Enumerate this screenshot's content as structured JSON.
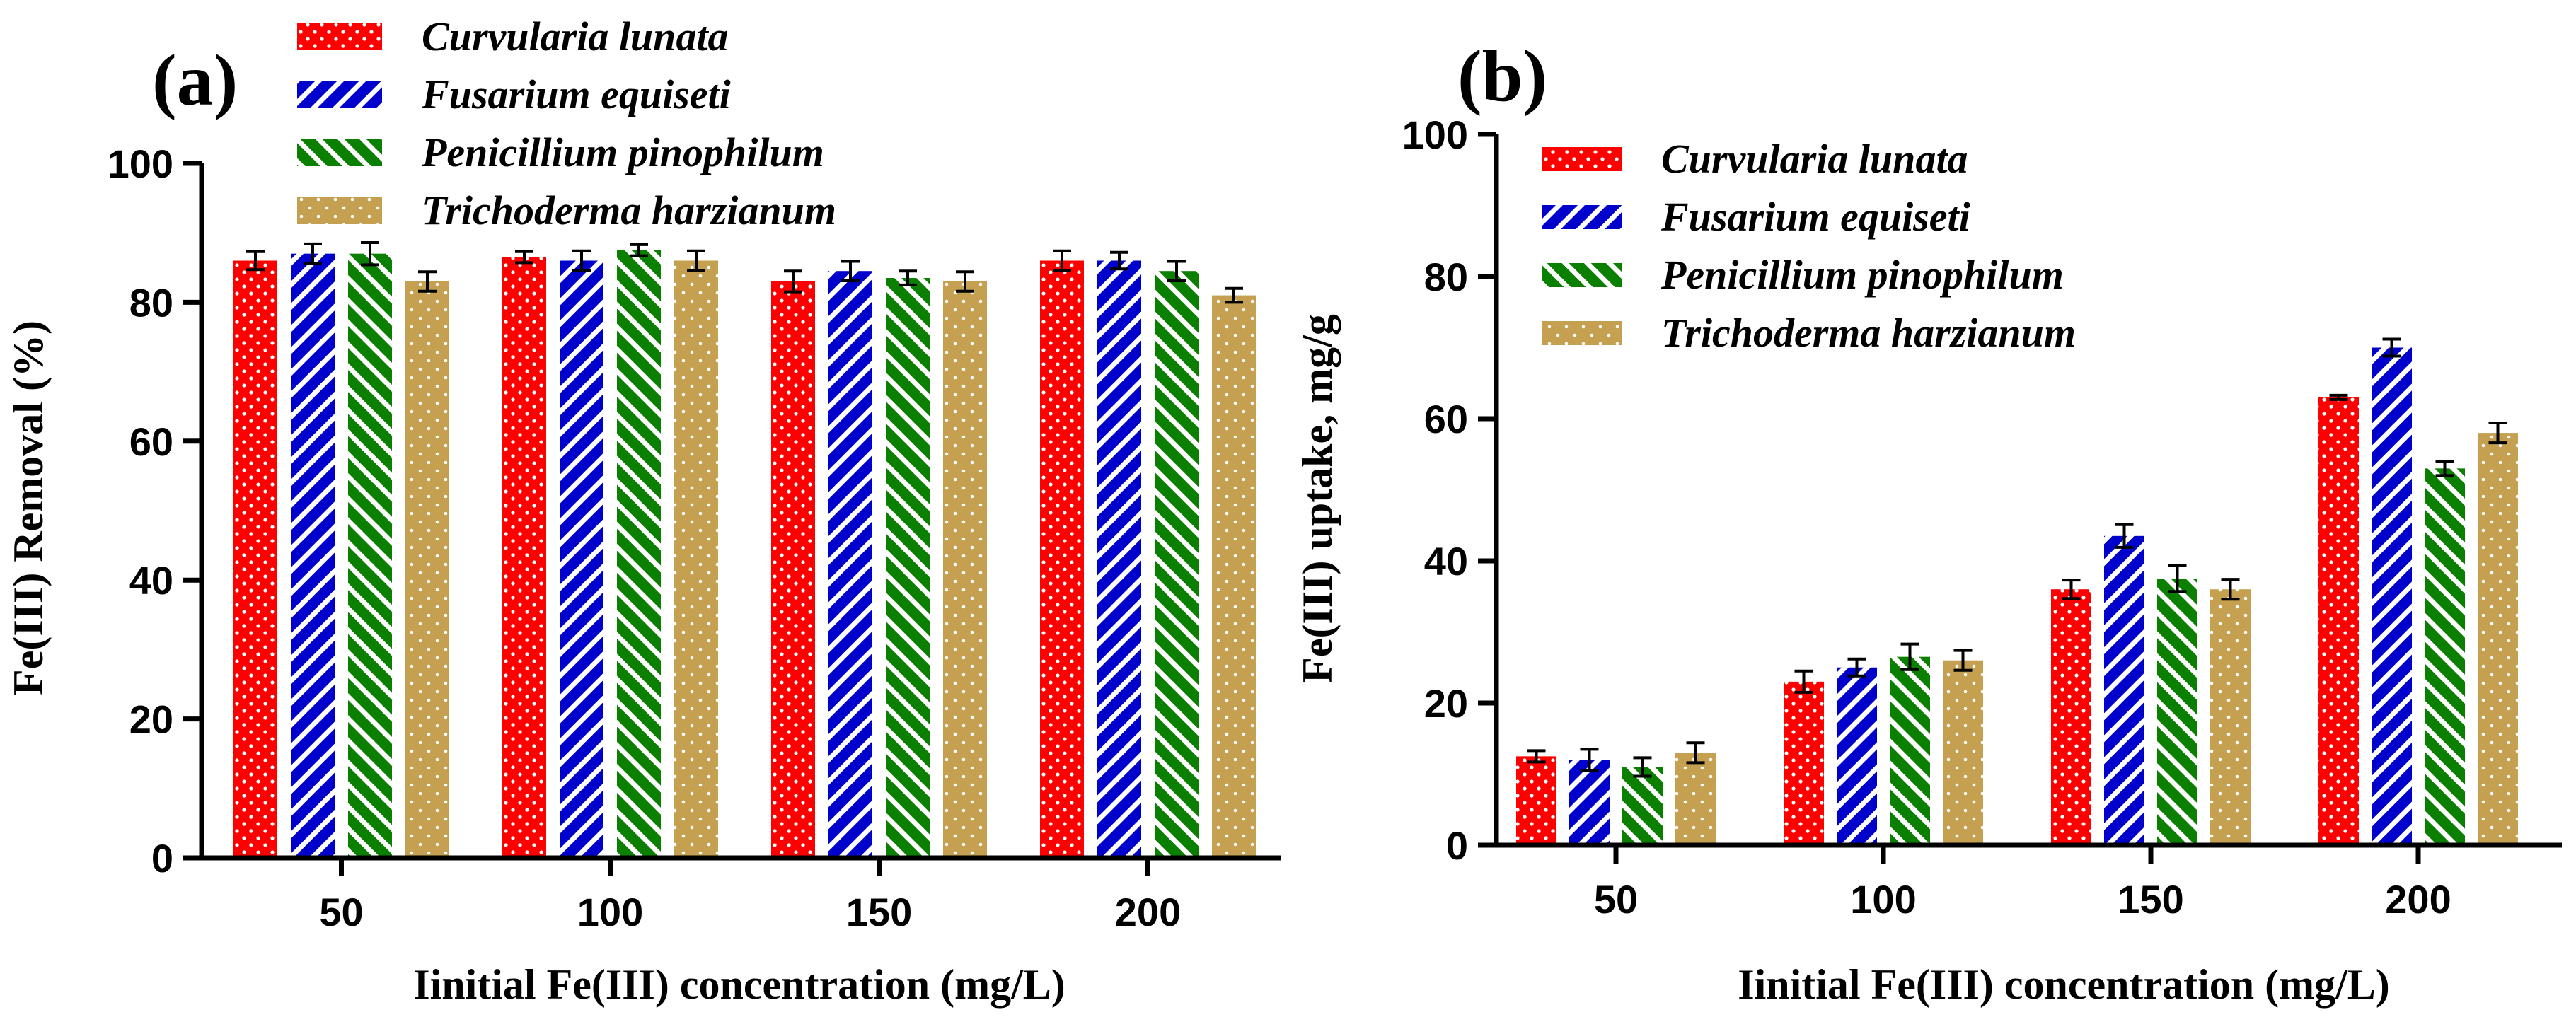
{
  "chart_data": [
    {
      "panel_label": "(a)",
      "type": "bar",
      "ylabel": "Fe(III) Removal (%)",
      "xlabel": "Iinitial Fe(III) concentration (mg/L)",
      "ylim": [
        0,
        100
      ],
      "yticks": [
        "0",
        "20",
        "40",
        "60",
        "80",
        "100"
      ],
      "yticks_values": [
        0,
        20,
        40,
        60,
        80,
        100
      ],
      "categories": [
        "50",
        "100",
        "150",
        "200"
      ],
      "legend_position": "top",
      "series": [
        {
          "name": "Curvularia lunata",
          "color": "#ff0000",
          "pattern": "dots",
          "values": [
            86,
            86.5,
            83,
            86
          ],
          "errors": [
            1.3,
            0.8,
            1.5,
            1.4
          ]
        },
        {
          "name": "Fusarium equiseti",
          "color": "#0000cc",
          "pattern": "diag-up",
          "values": [
            87,
            86,
            84.5,
            86
          ],
          "errors": [
            1.4,
            1.4,
            1.4,
            1.2
          ]
        },
        {
          "name": "Penicillium pinophilum",
          "color": "#0b8000",
          "pattern": "diag-down",
          "values": [
            87,
            87.5,
            83.5,
            84.5
          ],
          "errors": [
            1.6,
            0.8,
            1.0,
            1.4
          ]
        },
        {
          "name": "Trichoderma harzianum",
          "color": "#c4a050",
          "pattern": "sparse-dots",
          "values": [
            83,
            86,
            83,
            81
          ],
          "errors": [
            1.4,
            1.4,
            1.4,
            1.0
          ]
        }
      ]
    },
    {
      "panel_label": "(b)",
      "type": "bar",
      "ylabel": "Fe(III) uptake, mg/g",
      "xlabel": "Iinitial Fe(III) concentration (mg/L)",
      "ylim": [
        0,
        100
      ],
      "yticks": [
        "0",
        "20",
        "40",
        "60",
        "80",
        "100"
      ],
      "yticks_values": [
        0,
        20,
        40,
        60,
        80,
        100
      ],
      "categories": [
        "50",
        "100",
        "150",
        "200"
      ],
      "legend_position": "top-left",
      "series": [
        {
          "name": "Curvularia lunata",
          "color": "#ff0000",
          "pattern": "dots",
          "values": [
            12.5,
            23,
            36,
            63
          ],
          "errors": [
            0.8,
            1.5,
            1.3,
            0.3
          ]
        },
        {
          "name": "Fusarium equiseti",
          "color": "#0000cc",
          "pattern": "diag-up",
          "values": [
            12,
            25,
            43.5,
            70
          ],
          "errors": [
            1.5,
            1.2,
            1.6,
            1.2
          ]
        },
        {
          "name": "Penicillium pinophilum",
          "color": "#0b8000",
          "pattern": "diag-down",
          "values": [
            11,
            26.5,
            37.5,
            53
          ],
          "errors": [
            1.3,
            1.8,
            1.8,
            1.0
          ]
        },
        {
          "name": "Trichoderma harzianum",
          "color": "#c4a050",
          "pattern": "sparse-dots",
          "values": [
            13,
            26,
            36,
            58
          ],
          "errors": [
            1.4,
            1.4,
            1.4,
            1.4
          ]
        }
      ]
    }
  ]
}
